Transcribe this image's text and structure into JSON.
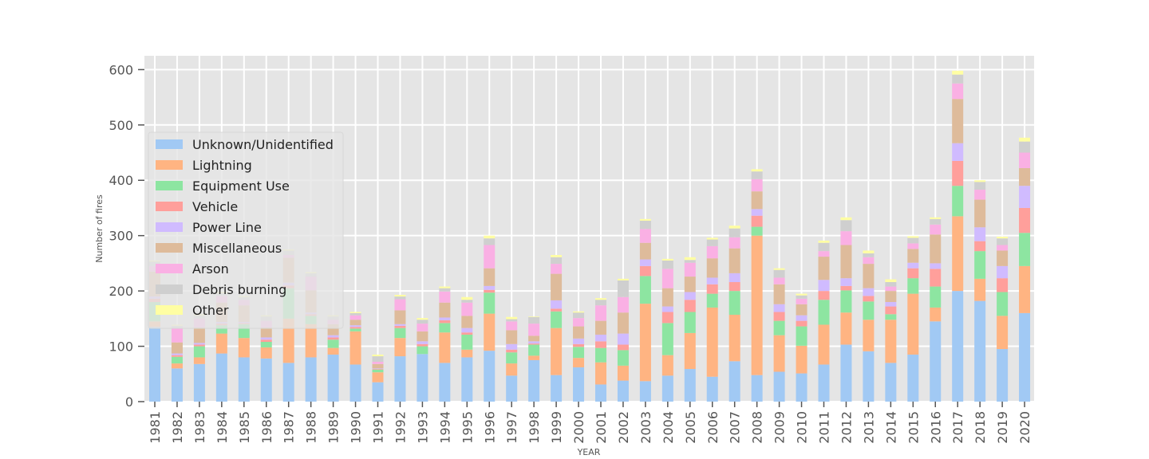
{
  "chart_data": {
    "type": "bar",
    "stacked": true,
    "xlabel": "YEAR",
    "ylabel": "Number of fires",
    "ylim": [
      0,
      625
    ],
    "yticks": [
      0,
      100,
      200,
      300,
      400,
      500,
      600
    ],
    "grid": true,
    "legend_position": "left",
    "categories": [
      "1981",
      "1982",
      "1983",
      "1984",
      "1985",
      "1986",
      "1987",
      "1988",
      "1989",
      "1990",
      "1991",
      "1992",
      "1993",
      "1994",
      "1995",
      "1996",
      "1997",
      "1998",
      "1999",
      "2000",
      "2001",
      "2002",
      "2003",
      "2004",
      "2005",
      "2006",
      "2007",
      "2008",
      "2009",
      "2010",
      "2011",
      "2012",
      "2013",
      "2014",
      "2015",
      "2016",
      "2017",
      "2018",
      "2019",
      "2020"
    ],
    "series": [
      {
        "name": "Unknown/Unidentified",
        "color": "#a1c9f4",
        "values": [
          135,
          60,
          68,
          87,
          80,
          78,
          70,
          80,
          85,
          67,
          35,
          82,
          86,
          70,
          80,
          92,
          47,
          75,
          48,
          62,
          31,
          38,
          37,
          47,
          59,
          45,
          73,
          48,
          54,
          51,
          67,
          103,
          91,
          70,
          85,
          145,
          200,
          182,
          95,
          160
        ]
      },
      {
        "name": "Lightning",
        "color": "#ffb482",
        "values": [
          10,
          9,
          12,
          36,
          35,
          20,
          80,
          60,
          12,
          60,
          18,
          33,
          0,
          55,
          14,
          67,
          22,
          8,
          85,
          17,
          40,
          27,
          140,
          37,
          65,
          125,
          84,
          252,
          66,
          50,
          72,
          58,
          57,
          78,
          110,
          25,
          135,
          40,
          60,
          85
        ]
      },
      {
        "name": "Equipment Use",
        "color": "#8de5a1",
        "values": [
          35,
          12,
          20,
          15,
          25,
          10,
          55,
          15,
          15,
          5,
          5,
          18,
          14,
          17,
          27,
          38,
          20,
          20,
          30,
          20,
          26,
          28,
          50,
          58,
          38,
          25,
          43,
          16,
          26,
          35,
          45,
          40,
          33,
          10,
          28,
          38,
          55,
          50,
          43,
          60
        ]
      },
      {
        "name": "Vehicle",
        "color": "#ff9f9b",
        "values": [
          6,
          3,
          3,
          3,
          2,
          4,
          5,
          3,
          4,
          3,
          1,
          4,
          4,
          5,
          4,
          5,
          5,
          2,
          5,
          5,
          12,
          10,
          18,
          20,
          22,
          17,
          16,
          20,
          16,
          10,
          16,
          8,
          10,
          14,
          18,
          32,
          45,
          18,
          25,
          45
        ]
      },
      {
        "name": "Power Line",
        "color": "#d0bbff",
        "values": [
          4,
          3,
          3,
          3,
          2,
          4,
          5,
          3,
          4,
          3,
          1,
          3,
          5,
          5,
          8,
          7,
          10,
          4,
          15,
          10,
          12,
          20,
          12,
          10,
          14,
          12,
          16,
          12,
          14,
          10,
          20,
          14,
          14,
          8,
          10,
          10,
          32,
          25,
          22,
          40
        ]
      },
      {
        "name": "Miscellaneous",
        "color": "#debb9b",
        "values": [
          45,
          20,
          28,
          35,
          30,
          18,
          45,
          40,
          20,
          10,
          8,
          25,
          18,
          27,
          22,
          32,
          25,
          10,
          48,
          22,
          25,
          38,
          30,
          33,
          28,
          35,
          45,
          32,
          36,
          20,
          42,
          60,
          44,
          20,
          25,
          52,
          80,
          50,
          28,
          32
        ]
      },
      {
        "name": "Arson",
        "color": "#fab0e4",
        "values": [
          10,
          25,
          16,
          12,
          10,
          12,
          5,
          25,
          8,
          8,
          4,
          20,
          14,
          20,
          24,
          42,
          16,
          22,
          18,
          15,
          28,
          28,
          25,
          35,
          25,
          22,
          20,
          22,
          12,
          10,
          10,
          25,
          12,
          8,
          10,
          18,
          28,
          18,
          10,
          28
        ]
      },
      {
        "name": "Debris burning",
        "color": "#cfcfcf",
        "values": [
          8,
          5,
          6,
          5,
          5,
          8,
          8,
          6,
          6,
          4,
          10,
          5,
          7,
          6,
          5,
          12,
          4,
          12,
          12,
          10,
          10,
          30,
          15,
          15,
          5,
          12,
          16,
          14,
          14,
          6,
          15,
          20,
          7,
          8,
          10,
          10,
          16,
          14,
          12,
          20
        ]
      },
      {
        "name": "Other",
        "color": "#fffea3",
        "values": [
          2,
          2,
          2,
          2,
          2,
          2,
          2,
          2,
          2,
          2,
          3,
          3,
          3,
          3,
          5,
          5,
          4,
          1,
          4,
          2,
          3,
          3,
          3,
          3,
          5,
          3,
          5,
          4,
          3,
          3,
          4,
          5,
          5,
          5,
          3,
          3,
          7,
          3,
          3,
          7
        ]
      }
    ]
  }
}
